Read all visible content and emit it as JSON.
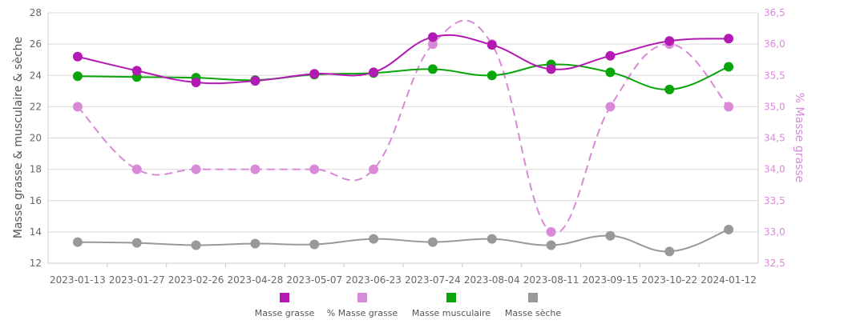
{
  "chart_data": {
    "type": "line",
    "categories": [
      "2023-01-13",
      "2023-01-27",
      "2023-02-26",
      "2023-04-28",
      "2023-05-07",
      "2023-06-23",
      "2023-07-24",
      "2023-08-04",
      "2023-08-11",
      "2023-09-15",
      "2023-10-22",
      "2024-01-12"
    ],
    "ylabel": "Masse  grasse &  musculaire &  sèche",
    "ylabel_right": "% Masse grasse",
    "ylim": [
      12,
      28
    ],
    "yticks": [
      "12",
      "14",
      "16",
      "18",
      "20",
      "22",
      "24",
      "26",
      "28"
    ],
    "ylim_right": [
      32.5,
      36.5
    ],
    "yticks_right": [
      "32,5",
      "33,0",
      "33,5",
      "34,0",
      "34,5",
      "35,0",
      "35,5",
      "36,0",
      "36,5"
    ],
    "grid": true,
    "legend_position": "bottom",
    "series": [
      {
        "name": "Masse grasse",
        "axis": "left",
        "color": "#b319b3",
        "dashed": false,
        "values": [
          25.2,
          24.3,
          23.55,
          23.65,
          24.1,
          24.2,
          26.45,
          25.95,
          24.4,
          25.25,
          26.2,
          26.35
        ]
      },
      {
        "name": "% Masse grasse",
        "axis": "right",
        "color": "#d88ad8",
        "dashed": true,
        "values": [
          35.0,
          34.0,
          34.0,
          34.0,
          34.0,
          34.0,
          36.0,
          36.0,
          33.0,
          35.0,
          36.0,
          35.0
        ]
      },
      {
        "name": "Masse musculaire",
        "axis": "left",
        "color": "#0aa50a",
        "dashed": false,
        "values": [
          23.95,
          23.9,
          23.85,
          23.7,
          24.05,
          24.15,
          24.4,
          24.0,
          24.7,
          24.2,
          23.1,
          24.55
        ]
      },
      {
        "name": "Masse sèche",
        "axis": "left",
        "color": "#999999",
        "dashed": false,
        "values": [
          13.35,
          13.3,
          13.15,
          13.25,
          13.2,
          13.55,
          13.35,
          13.55,
          13.15,
          13.75,
          12.75,
          14.15
        ]
      }
    ]
  }
}
